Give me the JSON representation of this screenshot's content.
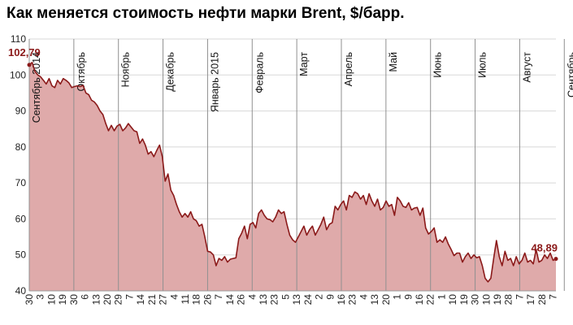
{
  "chart_data": {
    "type": "area",
    "title": "Как меняется стоимость нефти марки Brent, $/барр.",
    "ylim": [
      40,
      110
    ],
    "yticks": [
      40,
      50,
      60,
      70,
      80,
      90,
      100,
      110
    ],
    "grid": true,
    "colors": {
      "line": "#8b1a1a",
      "fill": "#dfaaaa",
      "grid": "#d8d8d8",
      "month_line": "#909090"
    },
    "x_tick_labels": [
      "30",
      "3",
      "10",
      "19",
      "30",
      "6",
      "13",
      "20",
      "29",
      "7",
      "14",
      "21",
      "27",
      "4",
      "11",
      "18",
      "26",
      "7",
      "14",
      "26",
      "4",
      "13",
      "23",
      "5",
      "13",
      "24",
      "2",
      "9",
      "16",
      "23",
      "4",
      "13",
      "20",
      "1",
      "9",
      "16",
      "22",
      "1",
      "10",
      "19",
      "30",
      "10",
      "19",
      "28",
      "7",
      "17",
      "28",
      "7"
    ],
    "month_markers": [
      {
        "label": "Сентябрь 2014",
        "tick": 0
      },
      {
        "label": "Октябрь",
        "tick": 4
      },
      {
        "label": "Ноябрь",
        "tick": 8
      },
      {
        "label": "Декабрь",
        "tick": 12
      },
      {
        "label": "Январь 2015",
        "tick": 16
      },
      {
        "label": "Февраль",
        "tick": 20
      },
      {
        "label": "Март",
        "tick": 24
      },
      {
        "label": "Апрель",
        "tick": 28
      },
      {
        "label": "Май",
        "tick": 32
      },
      {
        "label": "Июнь",
        "tick": 36
      },
      {
        "label": "Июль",
        "tick": 40
      },
      {
        "label": "Август",
        "tick": 44
      },
      {
        "label": "Сентябрь",
        "tick": 48
      }
    ],
    "series": [
      {
        "values": [
          102.8,
          103.5,
          101,
          100,
          99.5,
          98.5,
          97.5,
          99,
          97,
          96.5,
          98.5,
          97.5,
          99,
          98.5,
          97.8,
          96.5,
          96.8,
          97,
          96.8,
          97.1,
          95,
          94.5,
          93,
          92.5,
          91.5,
          90,
          89,
          86.5,
          84.5,
          86,
          84.5,
          85.8,
          86.3,
          84.5,
          85.3,
          86.5,
          85.5,
          84.5,
          84.2,
          81,
          82.2,
          80.5,
          78,
          78.7,
          77.3,
          79,
          80.5,
          77.3,
          70.5,
          72.5,
          68,
          66.5,
          64,
          62,
          60.5,
          61.5,
          60.5,
          62,
          60,
          59.5,
          58,
          58.5,
          55,
          51,
          50.8,
          50,
          47,
          49,
          48.5,
          49.5,
          48,
          48.8,
          49,
          49.2,
          54.5,
          56,
          58,
          54.5,
          58.5,
          59,
          57.5,
          61.5,
          62.5,
          61,
          60,
          59.8,
          59.2,
          60.5,
          62.5,
          61.5,
          62,
          58.5,
          55.5,
          54.2,
          53.5,
          55,
          56.5,
          58,
          55.5,
          57,
          58,
          55.5,
          57,
          58.5,
          60.5,
          57,
          58.5,
          59,
          63.5,
          62.5,
          64,
          65,
          62.5,
          66.5,
          66,
          67.5,
          67,
          65.5,
          66.5,
          64,
          67,
          65,
          63.5,
          65.5,
          62.5,
          63.2,
          65,
          63.5,
          64,
          61,
          66,
          65,
          63.5,
          63.2,
          64.5,
          62.5,
          63,
          63.2,
          61,
          63,
          57.5,
          55.8,
          56.5,
          57.5,
          53.5,
          54.2,
          53.5,
          55,
          53,
          51.5,
          49.8,
          50.5,
          50.5,
          48,
          49.5,
          50.5,
          49,
          50,
          49.2,
          49.5,
          47,
          43.5,
          42.5,
          43.5,
          49,
          54,
          49.5,
          47,
          51,
          48.5,
          49,
          47,
          49.5,
          47.5,
          48.5,
          50.5,
          48,
          48.5,
          47.5,
          51.5,
          48,
          48.5,
          50,
          49,
          50.5,
          48.5,
          48.89
        ]
      }
    ],
    "annotations": [
      {
        "text": "102,79",
        "at": "first"
      },
      {
        "text": "48,89",
        "at": "last"
      }
    ]
  }
}
